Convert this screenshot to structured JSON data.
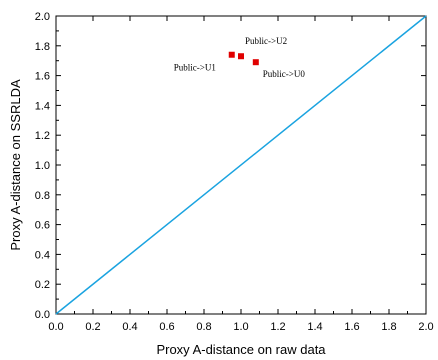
{
  "chart_data": {
    "type": "scatter",
    "xlabel": "Proxy A-distance on raw data",
    "ylabel": "Proxy A-distance on SSRLDA",
    "xlim": [
      0.0,
      2.0
    ],
    "ylim": [
      0.0,
      2.0
    ],
    "xticks": [
      "0.0",
      "0.2",
      "0.4",
      "0.6",
      "0.8",
      "1.0",
      "1.2",
      "1.4",
      "1.6",
      "1.8",
      "2.0"
    ],
    "yticks": [
      "0.0",
      "0.2",
      "0.4",
      "0.6",
      "0.8",
      "1.0",
      "1.2",
      "1.4",
      "1.6",
      "1.8",
      "2.0"
    ],
    "grid": false,
    "reference_line": {
      "from": [
        0.0,
        0.0
      ],
      "to": [
        2.0,
        2.0
      ],
      "color": "#1aa3e0"
    },
    "points": [
      {
        "label": "Public->U1",
        "x": 0.95,
        "y": 1.74
      },
      {
        "label": "Public->U2",
        "x": 1.0,
        "y": 1.73
      },
      {
        "label": "Public->U0",
        "x": 1.08,
        "y": 1.69
      }
    ],
    "marker_color": "#e00000"
  }
}
